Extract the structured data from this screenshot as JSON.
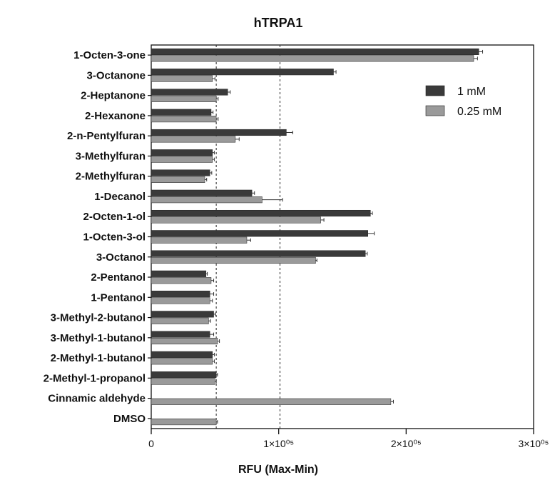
{
  "chart_data": {
    "type": "bar",
    "orientation": "horizontal",
    "title": "hTRPA1",
    "xlabel": "RFU (Max-Min)",
    "ylabel": "",
    "xlim": [
      0,
      300000
    ],
    "x_ticks": [
      {
        "value": 0,
        "label": "0"
      },
      {
        "value": 100000,
        "label": "1×10⁰⁵"
      },
      {
        "value": 200000,
        "label": "2×10⁰⁵"
      },
      {
        "value": 300000,
        "label": "3×10⁰⁵"
      }
    ],
    "reference_lines": [
      51000,
      101000
    ],
    "legend_placement": "top-right",
    "grid": false,
    "categories": [
      "1-Octen-3-one",
      "3-Octanone",
      "2-Heptanone",
      "2-Hexanone",
      "2-n-Pentylfuran",
      "3-Methylfuran",
      "2-Methylfuran",
      "1-Decanol",
      "2-Octen-1-ol",
      "1-Octen-3-ol",
      "3-Octanol",
      "2-Pentanol",
      "1-Pentanol",
      "3-Methyl-2-butanol",
      "3-Methyl-1-butanol",
      "2-Methyl-1-butanol",
      "2-Methyl-1-propanol",
      "Cinnamic aldehyde",
      "DMSO"
    ],
    "series": [
      {
        "name": "1 mM",
        "color": "#3a3a3a",
        "values": [
          257000,
          143000,
          60000,
          47000,
          106000,
          48000,
          46000,
          79000,
          172000,
          170000,
          168000,
          43000,
          46000,
          49000,
          46000,
          48000,
          51000,
          null,
          null
        ],
        "errors": [
          3000,
          2000,
          2000,
          1500,
          5000,
          1500,
          1500,
          2000,
          1500,
          5000,
          1500,
          1000,
          3000,
          1500,
          3000,
          1500,
          1000,
          null,
          null
        ]
      },
      {
        "name": "0.25 mM",
        "color": "#9a9a9a",
        "values": [
          253000,
          48000,
          51000,
          51000,
          66000,
          48000,
          42000,
          87000,
          133000,
          75000,
          129000,
          47000,
          46000,
          45000,
          52000,
          48000,
          50000,
          188000,
          51000
        ],
        "errors": [
          3000,
          2000,
          1500,
          1500,
          3000,
          1500,
          1500,
          16000,
          2500,
          3000,
          1000,
          2000,
          2000,
          1500,
          1500,
          1500,
          1000,
          2000,
          1000
        ]
      }
    ]
  }
}
